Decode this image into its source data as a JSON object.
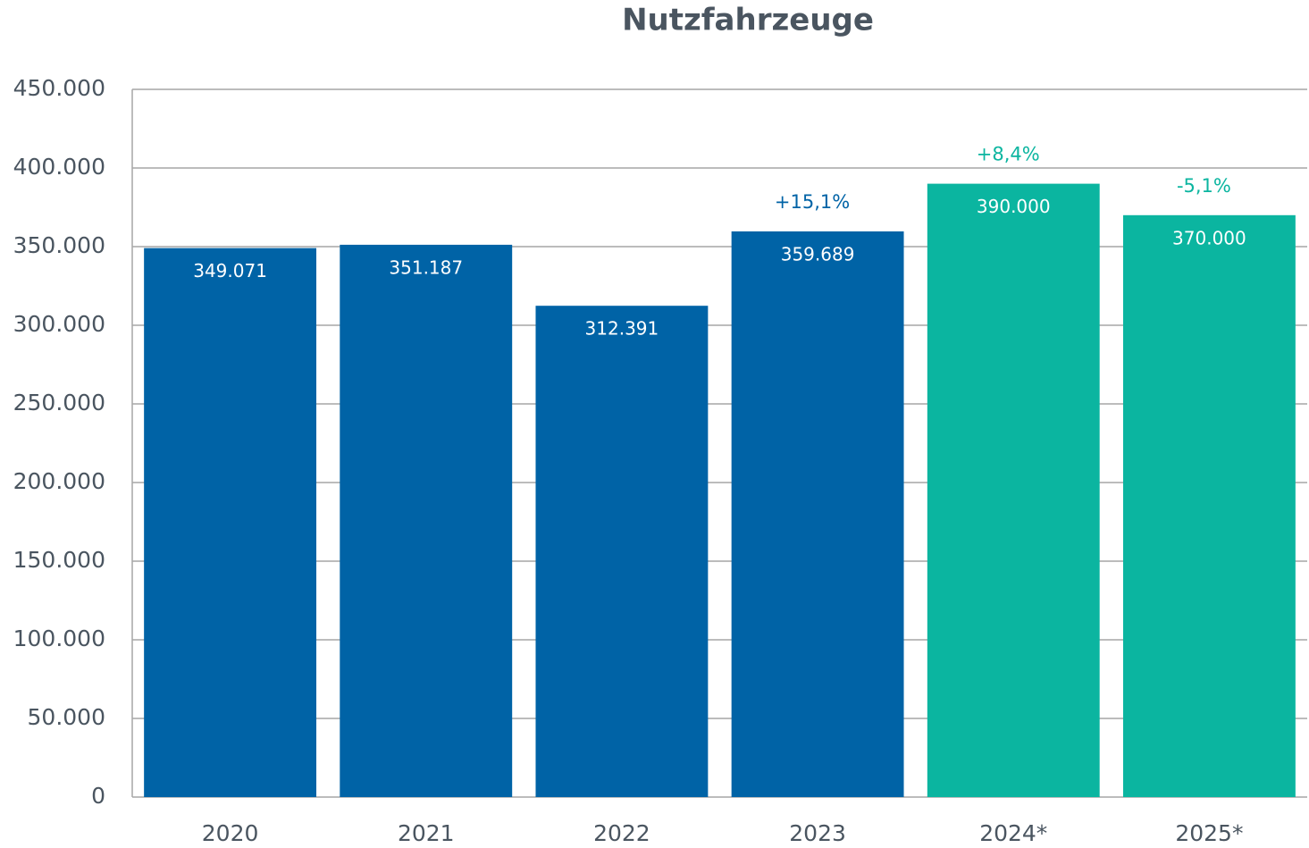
{
  "chart_data": {
    "type": "bar",
    "title": "Nutzfahrzeuge",
    "categories": [
      "2020",
      "2021",
      "2022",
      "2023",
      "2024*",
      "2025*"
    ],
    "values": [
      349071,
      351187,
      312391,
      359689,
      390000,
      370000
    ],
    "value_labels": [
      "349.071",
      "351.187",
      "312.391",
      "359.689",
      "390.000",
      "370.000"
    ],
    "colors": [
      "#0063a6",
      "#0063a6",
      "#0063a6",
      "#0063a6",
      "#0bb5a0",
      "#0bb5a0"
    ],
    "annotations": [
      null,
      null,
      null,
      "+15,1%",
      "+8,4%",
      "-5,1%"
    ],
    "ylim": [
      0,
      450000
    ],
    "yticks": [
      0,
      {
        "value": 50000,
        "label": "50.000"
      },
      {
        "value": 100000,
        "label": "100.000"
      },
      {
        "value": 150000,
        "label": "150.000"
      },
      {
        "value": 200000,
        "label": "200.000"
      },
      {
        "value": 250000,
        "label": "250.000"
      },
      {
        "value": 300000,
        "label": "300.000"
      },
      {
        "value": 350000,
        "label": "350.000"
      },
      {
        "value": 400000,
        "label": "400.000"
      },
      {
        "value": 450000,
        "label": "450.000"
      }
    ],
    "grid": true
  }
}
